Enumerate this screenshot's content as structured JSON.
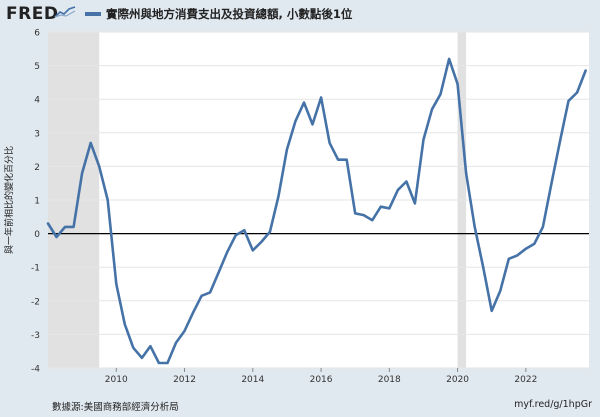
{
  "header": {
    "logo_text": "FRED",
    "series_title": "實際州與地方消費支出及投資總額, 小數點後1位"
  },
  "footer": {
    "source": "數據源:美國商務部經濟分析局",
    "link": "myf.red/g/1hpGr"
  },
  "colors": {
    "series": "#4572a7",
    "recession": "#e1e1e1",
    "background": "#e1e9f0",
    "plot_bg": "#ffffff"
  },
  "chart_data": {
    "type": "line",
    "title": "實際州與地方消費支出及投資總額, 小數點後1位",
    "xlabel": "",
    "ylabel": "與一年前相比的變化百分比",
    "xlim": [
      2008.0,
      2023.85
    ],
    "ylim": [
      -4,
      6
    ],
    "y_ticks": [
      -4,
      -3,
      -2,
      -1,
      0,
      1,
      2,
      3,
      4,
      5,
      6
    ],
    "x_ticks": [
      2010,
      2012,
      2014,
      2016,
      2018,
      2020,
      2022
    ],
    "x_tick_labels": [
      "2010",
      "2012",
      "2014",
      "2016",
      "2018",
      "2020",
      "2022"
    ],
    "recessions": [
      [
        2008.0,
        2009.5
      ],
      [
        2020.0,
        2020.25
      ]
    ],
    "zero_line": true,
    "series": [
      {
        "name": "實際州與地方消費支出及投資總額",
        "x": [
          2008.0,
          2008.25,
          2008.5,
          2008.75,
          2009.0,
          2009.25,
          2009.5,
          2009.75,
          2010.0,
          2010.25,
          2010.5,
          2010.75,
          2011.0,
          2011.25,
          2011.5,
          2011.75,
          2012.0,
          2012.25,
          2012.5,
          2012.75,
          2013.0,
          2013.25,
          2013.5,
          2013.75,
          2014.0,
          2014.25,
          2014.5,
          2014.75,
          2015.0,
          2015.25,
          2015.5,
          2015.75,
          2016.0,
          2016.25,
          2016.5,
          2016.75,
          2017.0,
          2017.25,
          2017.5,
          2017.75,
          2018.0,
          2018.25,
          2018.5,
          2018.75,
          2019.0,
          2019.25,
          2019.5,
          2019.75,
          2020.0,
          2020.25,
          2020.5,
          2020.75,
          2021.0,
          2021.25,
          2021.5,
          2021.75,
          2022.0,
          2022.25,
          2022.5,
          2022.75,
          2023.0,
          2023.25,
          2023.5,
          2023.75
        ],
        "values": [
          0.3,
          -0.1,
          0.2,
          0.2,
          1.8,
          2.7,
          2.0,
          1.0,
          -1.5,
          -2.7,
          -3.4,
          -3.7,
          -3.35,
          -3.85,
          -3.85,
          -3.25,
          -2.9,
          -2.35,
          -1.85,
          -1.75,
          -1.15,
          -0.55,
          -0.05,
          0.1,
          -0.5,
          -0.25,
          0.05,
          1.1,
          2.5,
          3.35,
          3.9,
          3.25,
          4.05,
          2.7,
          2.2,
          2.2,
          0.6,
          0.55,
          0.4,
          0.8,
          0.75,
          1.3,
          1.55,
          0.9,
          2.8,
          3.7,
          4.15,
          5.2,
          4.45,
          1.8,
          0.2,
          -1.0,
          -2.3,
          -1.7,
          -0.75,
          -0.65,
          -0.45,
          -0.3,
          0.2,
          1.5,
          2.75,
          3.95,
          4.2,
          4.85
        ]
      }
    ]
  }
}
